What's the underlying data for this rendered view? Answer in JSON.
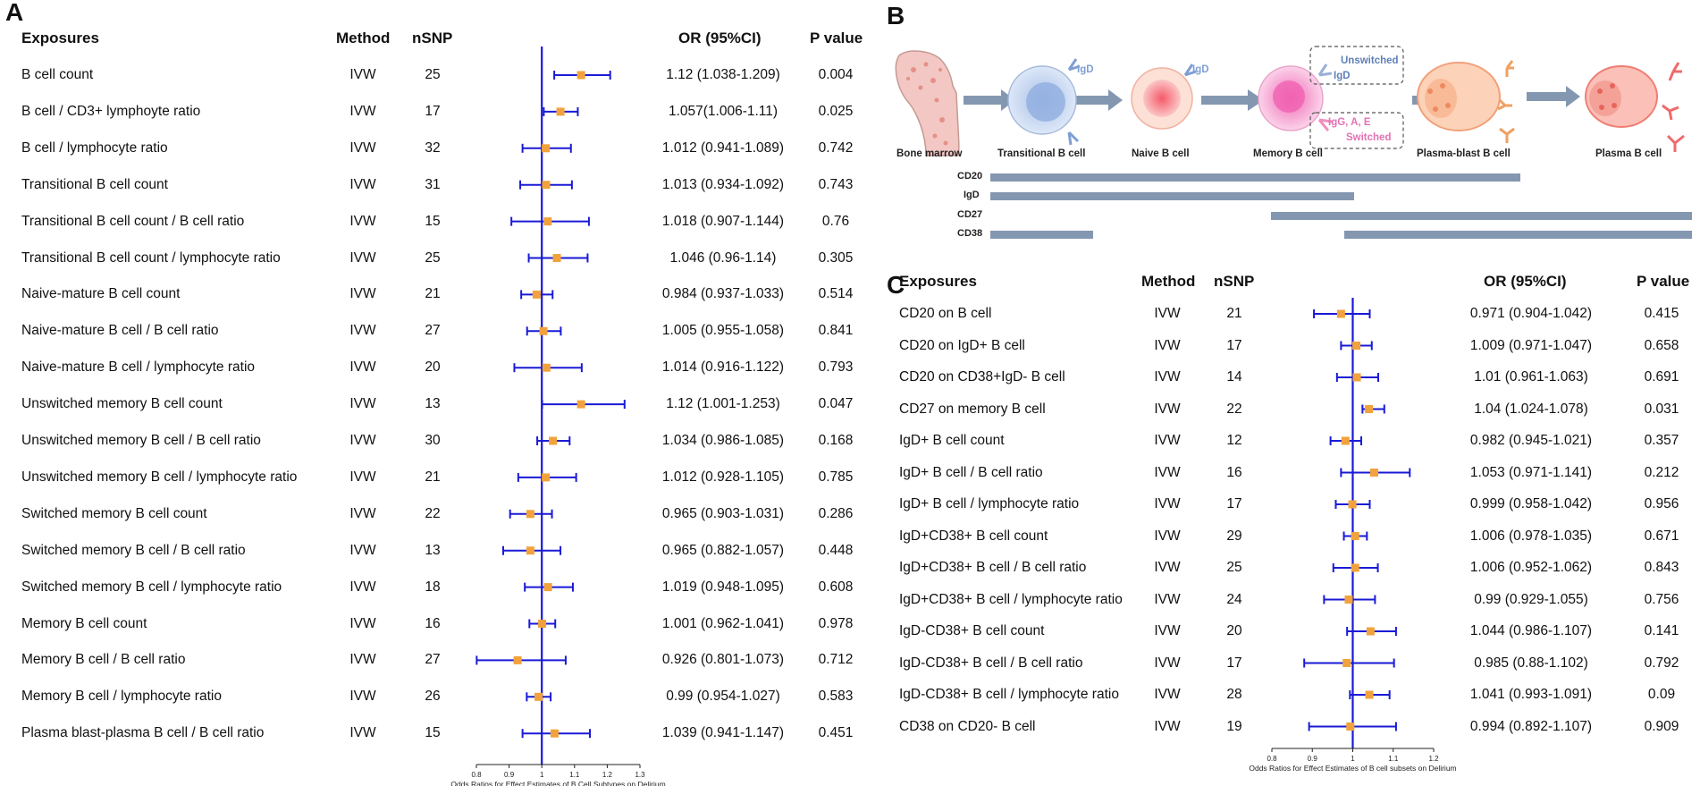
{
  "panels": {
    "a": "A",
    "b": "B",
    "c": "C"
  },
  "colors": {
    "line": "#1a1ad6",
    "point": "#f2a23c",
    "bar": "#8497b0",
    "arrow": "#8497b0"
  },
  "headers": {
    "exposures": "Exposures",
    "method": "Method",
    "nsnp": "nSNP",
    "or": "OR (95%CI)",
    "p": "P value"
  },
  "chart_data": [
    {
      "type": "forest",
      "panel": "A",
      "xlabel": "Odds Ratios for Effect Estimates of B Cell Subtypes on Delirium",
      "xlim": [
        0.8,
        1.3
      ],
      "xticks": [
        "0.8",
        "0.9",
        "1",
        "1.1",
        "1.2",
        "1.3"
      ],
      "xtick_values": [
        0.8,
        0.9,
        1.0,
        1.1,
        1.2,
        1.3
      ],
      "ref_line": 1,
      "rows": [
        {
          "exposure": "B cell count",
          "method": "IVW",
          "nsnp": "25",
          "or_text": "1.12 (1.038-1.209)",
          "p": "0.004",
          "or": 1.12,
          "lo": 1.038,
          "hi": 1.209
        },
        {
          "exposure": "B cell / CD3+ lymphoyte ratio",
          "method": "IVW",
          "nsnp": "17",
          "or_text": "1.057(1.006-1.11)",
          "p": "0.025",
          "or": 1.057,
          "lo": 1.006,
          "hi": 1.11
        },
        {
          "exposure": "B cell / lymphocyte ratio",
          "method": "IVW",
          "nsnp": "32",
          "or_text": "1.012 (0.941-1.089)",
          "p": "0.742",
          "or": 1.012,
          "lo": 0.941,
          "hi": 1.089
        },
        {
          "exposure": "Transitional B cell count",
          "method": "IVW",
          "nsnp": "31",
          "or_text": "1.013 (0.934-1.092)",
          "p": "0.743",
          "or": 1.013,
          "lo": 0.934,
          "hi": 1.092
        },
        {
          "exposure": "Transitional B cell count / B cell ratio",
          "method": "IVW",
          "nsnp": "15",
          "or_text": "1.018 (0.907-1.144)",
          "p": "0.76",
          "or": 1.018,
          "lo": 0.907,
          "hi": 1.144
        },
        {
          "exposure": "Transitional B cell count / lymphocyte ratio",
          "method": "IVW",
          "nsnp": "25",
          "or_text": "1.046 (0.96-1.14)",
          "p": "0.305",
          "or": 1.046,
          "lo": 0.96,
          "hi": 1.14
        },
        {
          "exposure": "Naive-mature B cell count",
          "method": "IVW",
          "nsnp": "21",
          "or_text": "0.984 (0.937-1.033)",
          "p": "0.514",
          "or": 0.984,
          "lo": 0.937,
          "hi": 1.033
        },
        {
          "exposure": "Naive-mature B cell / B cell ratio",
          "method": "IVW",
          "nsnp": "27",
          "or_text": "1.005 (0.955-1.058)",
          "p": "0.841",
          "or": 1.005,
          "lo": 0.955,
          "hi": 1.058
        },
        {
          "exposure": "Naive-mature B cell / lymphocyte ratio",
          "method": "IVW",
          "nsnp": "20",
          "or_text": "1.014 (0.916-1.122)",
          "p": "0.793",
          "or": 1.014,
          "lo": 0.916,
          "hi": 1.122
        },
        {
          "exposure": "Unswitched memory B cell count",
          "method": "IVW",
          "nsnp": "13",
          "or_text": "1.12 (1.001-1.253)",
          "p": "0.047",
          "or": 1.12,
          "lo": 1.001,
          "hi": 1.253
        },
        {
          "exposure": "Unswitched memory B cell / B cell ratio",
          "method": "IVW",
          "nsnp": "30",
          "or_text": "1.034 (0.986-1.085)",
          "p": "0.168",
          "or": 1.034,
          "lo": 0.986,
          "hi": 1.085
        },
        {
          "exposure": "Unswitched memory B cell / lymphocyte ratio",
          "method": "IVW",
          "nsnp": "21",
          "or_text": "1.012 (0.928-1.105)",
          "p": "0.785",
          "or": 1.012,
          "lo": 0.928,
          "hi": 1.105
        },
        {
          "exposure": "Switched memory B cell count",
          "method": "IVW",
          "nsnp": "22",
          "or_text": "0.965 (0.903-1.031)",
          "p": "0.286",
          "or": 0.965,
          "lo": 0.903,
          "hi": 1.031
        },
        {
          "exposure": "Switched memory B cell / B cell ratio",
          "method": "IVW",
          "nsnp": "13",
          "or_text": "0.965 (0.882-1.057)",
          "p": "0.448",
          "or": 0.965,
          "lo": 0.882,
          "hi": 1.057
        },
        {
          "exposure": "Switched memory B cell / lymphocyte ratio",
          "method": "IVW",
          "nsnp": "18",
          "or_text": "1.019 (0.948-1.095)",
          "p": "0.608",
          "or": 1.019,
          "lo": 0.948,
          "hi": 1.095
        },
        {
          "exposure": "Memory B cell count",
          "method": "IVW",
          "nsnp": "16",
          "or_text": "1.001 (0.962-1.041)",
          "p": "0.978",
          "or": 1.001,
          "lo": 0.962,
          "hi": 1.041
        },
        {
          "exposure": "Memory B cell / B cell ratio",
          "method": "IVW",
          "nsnp": "27",
          "or_text": "0.926 (0.801-1.073)",
          "p": "0.712",
          "or": 0.926,
          "lo": 0.801,
          "hi": 1.073
        },
        {
          "exposure": "Memory B cell / lymphocyte ratio",
          "method": "IVW",
          "nsnp": "26",
          "or_text": "0.99 (0.954-1.027)",
          "p": "0.583",
          "or": 0.99,
          "lo": 0.954,
          "hi": 1.027
        },
        {
          "exposure": "Plasma blast-plasma B cell / B cell ratio",
          "method": "IVW",
          "nsnp": "15",
          "or_text": "1.039 (0.941-1.147)",
          "p": "0.451",
          "or": 1.039,
          "lo": 0.941,
          "hi": 1.147
        }
      ]
    },
    {
      "type": "forest",
      "panel": "C",
      "xlabel": "Odds Ratios for Effect Estimates of B cell subsets on Delirium",
      "xlim": [
        0.8,
        1.2
      ],
      "xticks": [
        "0.8",
        "0.9",
        "1",
        "1.1",
        "1.2"
      ],
      "xtick_values": [
        0.8,
        0.9,
        1.0,
        1.1,
        1.2
      ],
      "ref_line": 1,
      "rows": [
        {
          "exposure": "CD20 on B cell",
          "method": "IVW",
          "nsnp": "21",
          "or_text": "0.971 (0.904-1.042)",
          "p": "0.415",
          "or": 0.971,
          "lo": 0.904,
          "hi": 1.042
        },
        {
          "exposure": "CD20 on IgD+ B cell",
          "method": "IVW",
          "nsnp": "17",
          "or_text": "1.009 (0.971-1.047)",
          "p": "0.658",
          "or": 1.009,
          "lo": 0.971,
          "hi": 1.047
        },
        {
          "exposure": "CD20 on CD38+IgD- B cell",
          "method": "IVW",
          "nsnp": "14",
          "or_text": "1.01 (0.961-1.063)",
          "p": "0.691",
          "or": 1.01,
          "lo": 0.961,
          "hi": 1.063
        },
        {
          "exposure": "CD27 on memory B cell",
          "method": "IVW",
          "nsnp": "22",
          "or_text": "1.04 (1.024-1.078)",
          "p": "0.031",
          "or": 1.04,
          "lo": 1.024,
          "hi": 1.078
        },
        {
          "exposure": "IgD+ B cell count",
          "method": "IVW",
          "nsnp": "12",
          "or_text": "0.982 (0.945-1.021)",
          "p": "0.357",
          "or": 0.982,
          "lo": 0.945,
          "hi": 1.021
        },
        {
          "exposure": "IgD+ B cell / B cell ratio",
          "method": "IVW",
          "nsnp": "16",
          "or_text": "1.053 (0.971-1.141)",
          "p": "0.212",
          "or": 1.053,
          "lo": 0.971,
          "hi": 1.141
        },
        {
          "exposure": "IgD+ B cell / lymphocyte ratio",
          "method": "IVW",
          "nsnp": "17",
          "or_text": "0.999 (0.958-1.042)",
          "p": "0.956",
          "or": 0.999,
          "lo": 0.958,
          "hi": 1.042
        },
        {
          "exposure": "IgD+CD38+ B cell count",
          "method": "IVW",
          "nsnp": "29",
          "or_text": "1.006 (0.978-1.035)",
          "p": "0.671",
          "or": 1.006,
          "lo": 0.978,
          "hi": 1.035
        },
        {
          "exposure": "IgD+CD38+ B cell / B cell ratio",
          "method": "IVW",
          "nsnp": "25",
          "or_text": "1.006 (0.952-1.062)",
          "p": "0.843",
          "or": 1.006,
          "lo": 0.952,
          "hi": 1.062
        },
        {
          "exposure": "IgD+CD38+ B cell / lymphocyte ratio",
          "method": "IVW",
          "nsnp": "24",
          "or_text": "0.99 (0.929-1.055)",
          "p": "0.756",
          "or": 0.99,
          "lo": 0.929,
          "hi": 1.055
        },
        {
          "exposure": "IgD-CD38+ B cell count",
          "method": "IVW",
          "nsnp": "20",
          "or_text": "1.044 (0.986-1.107)",
          "p": "0.141",
          "or": 1.044,
          "lo": 0.986,
          "hi": 1.107
        },
        {
          "exposure": "IgD-CD38+ B cell / B cell ratio",
          "method": "IVW",
          "nsnp": "17",
          "or_text": "0.985 (0.88-1.102)",
          "p": "0.792",
          "or": 0.985,
          "lo": 0.88,
          "hi": 1.102
        },
        {
          "exposure": "IgD-CD38+ B cell / lymphocyte ratio",
          "method": "IVW",
          "nsnp": "28",
          "or_text": "1.041 (0.993-1.091)",
          "p": "0.09",
          "or": 1.041,
          "lo": 0.993,
          "hi": 1.091
        },
        {
          "exposure": "CD38 on CD20- B cell",
          "method": "IVW",
          "nsnp": "19",
          "or_text": "0.994 (0.892-1.107)",
          "p": "0.909",
          "or": 0.994,
          "lo": 0.892,
          "hi": 1.107
        }
      ]
    }
  ],
  "diagram": {
    "stages": [
      {
        "label": "Bone marrow"
      },
      {
        "label": "Transitional B cell"
      },
      {
        "label": "Naive B cell"
      },
      {
        "label": "Memory B cell"
      },
      {
        "label": "Plasma-blast B cell"
      },
      {
        "label": "Plasma B cell"
      }
    ],
    "receptor_labels": {
      "igd1": "IgD",
      "igd2": "IgD",
      "unswitched_title": "Unswitched",
      "unswitched_igd": "IgD",
      "switched_igg": "IgG, A, E",
      "switched_title": "Switched"
    },
    "markers": [
      {
        "label": "CD20"
      },
      {
        "label": "IgD"
      },
      {
        "label": "CD27"
      },
      {
        "label": "CD38"
      }
    ]
  }
}
